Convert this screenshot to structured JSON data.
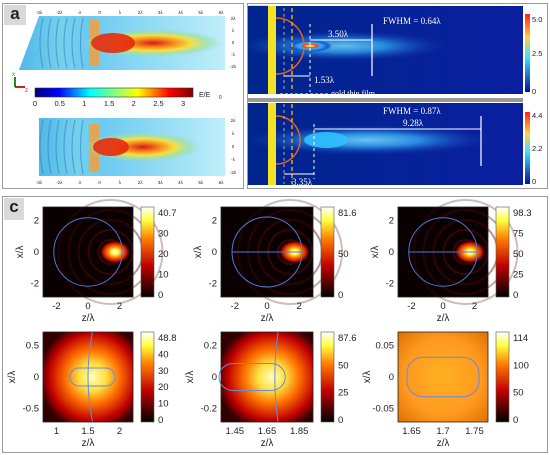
{
  "panel_a": {
    "label": "a",
    "x_ticks": [
      "-3λ",
      "-2λ",
      "-λ",
      "0",
      "λ",
      "2λ",
      "3λ",
      "4λ",
      "5λ",
      "6λ"
    ],
    "y_ticks": [
      "2λ",
      "λ",
      "0",
      "-λ",
      "-2λ"
    ],
    "colorbar_ticks": [
      "0",
      "0.5",
      "1",
      "1.5",
      "2",
      "2.5",
      "3"
    ],
    "colorbar_label": "E/E",
    "colorbar_label_sub": "0",
    "axis_z": "z",
    "axis_x": "x"
  },
  "panel_b": {
    "label": "b",
    "top": {
      "fwhm": "FWHM = 0.64λ",
      "length": "3.50λ",
      "offset": "1.53λ",
      "film": "gold thin film",
      "cbar": [
        "5.0",
        "2.5",
        "0"
      ]
    },
    "bottom": {
      "fwhm": "FWHM = 0.87λ",
      "length": "9.28λ",
      "offset": "3.35λ",
      "cbar": [
        "4.4",
        "2.2",
        "0"
      ]
    }
  },
  "panel_c": {
    "label": "c",
    "plots": [
      {
        "xlabel": "z/λ",
        "ylabel": "x/λ",
        "xticks": [
          "-2",
          "0",
          "2"
        ],
        "yticks": [
          "2",
          "0",
          "-2"
        ],
        "cbar": [
          "40.7",
          "30",
          "20",
          "10",
          "0"
        ]
      },
      {
        "xlabel": "z/λ",
        "ylabel": "x/λ",
        "xticks": [
          "-2",
          "0",
          "2"
        ],
        "yticks": [
          "2",
          "0",
          "-2"
        ],
        "cbar": [
          "81.6",
          "50",
          "0"
        ]
      },
      {
        "xlabel": "z/λ",
        "ylabel": "x/λ",
        "xticks": [
          "-2",
          "0",
          "2"
        ],
        "yticks": [
          "2",
          "0",
          "-2"
        ],
        "cbar": [
          "98.3",
          "75",
          "50",
          "25",
          "0"
        ]
      },
      {
        "xlabel": "z/λ",
        "ylabel": "x/λ",
        "xticks": [
          "1",
          "1.5",
          "2"
        ],
        "yticks": [
          "0.5",
          "0",
          "-0.5"
        ],
        "cbar": [
          "48.8",
          "40",
          "30",
          "20",
          "10",
          "0"
        ]
      },
      {
        "xlabel": "z/λ",
        "ylabel": "x/λ",
        "xticks": [
          "1.45",
          "1.65",
          "1.85"
        ],
        "yticks": [
          "0.2",
          "0",
          "-0.2"
        ],
        "cbar": [
          "87.6",
          "50",
          "25",
          "0"
        ]
      },
      {
        "xlabel": "z/λ",
        "ylabel": "x/λ",
        "xticks": [
          "1.65",
          "1.7",
          "1.75"
        ],
        "yticks": [
          "0.05",
          "0",
          "-0.05"
        ],
        "cbar": [
          "114",
          "100",
          "50",
          "0"
        ]
      }
    ]
  }
}
